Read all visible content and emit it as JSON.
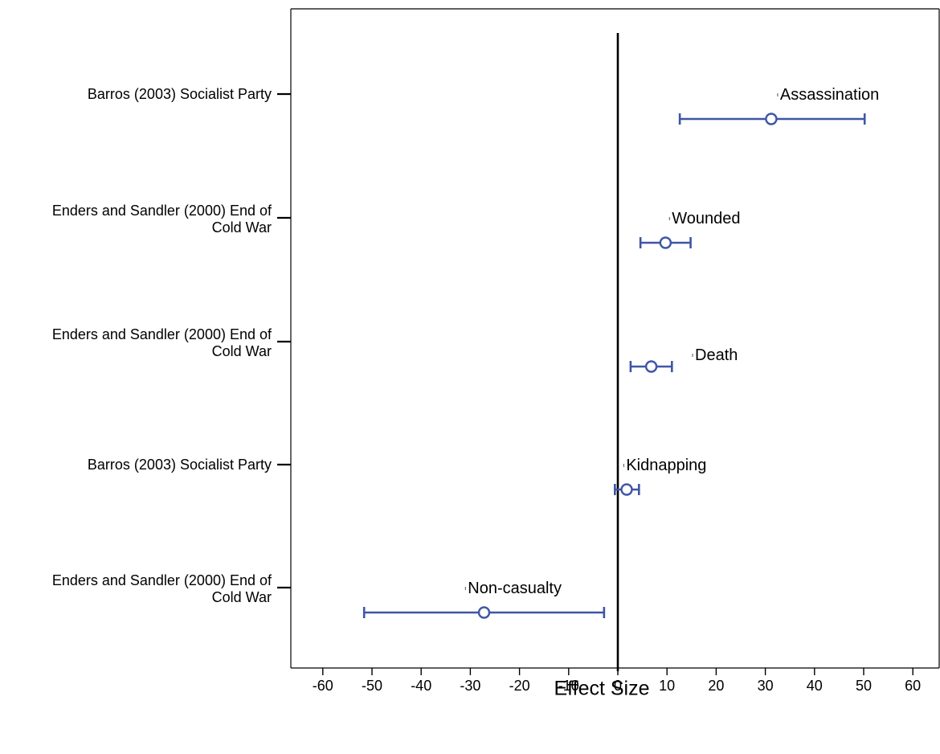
{
  "chart_data": {
    "type": "forest",
    "title": "",
    "xlabel": "Effect Size",
    "ylabel": "",
    "xlim": [
      -66,
      66
    ],
    "xticks": [
      -60,
      -50,
      -40,
      -30,
      -20,
      -10,
      0,
      10,
      20,
      30,
      40,
      50,
      60
    ],
    "reference_line_x": 0,
    "grid": false,
    "legend": "none",
    "colors": {
      "interval": "#3f56a6",
      "reference_line": "#000000",
      "axes": "#000000"
    },
    "rows": [
      {
        "study": [
          "Barros (2003) Socialist Party"
        ],
        "label": "Assassination",
        "estimate": 31.2,
        "lower": 12.6,
        "upper": 50.2,
        "label_x": 32.5
      },
      {
        "study": [
          "Enders and Sandler (2000) End of",
          "Cold War"
        ],
        "label": "Wounded",
        "estimate": 9.7,
        "lower": 4.6,
        "upper": 14.8,
        "label_x": 10.5
      },
      {
        "study": [
          "Enders and Sandler (2000)  End of",
          "Cold War"
        ],
        "label": "Death",
        "estimate": 6.8,
        "lower": 2.6,
        "upper": 11.0,
        "label_x": 15.2
      },
      {
        "study": [
          "Barros (2003) Socialist Party"
        ],
        "label": "Kidnapping",
        "estimate": 1.8,
        "lower": -0.6,
        "upper": 4.3,
        "label_x": 1.2
      },
      {
        "study": [
          "Enders and Sandler (2000)  End of",
          "Cold War"
        ],
        "label": "Non-casualty",
        "estimate": -27.2,
        "lower": -51.6,
        "upper": -2.8,
        "label_x": -31.0
      }
    ]
  }
}
